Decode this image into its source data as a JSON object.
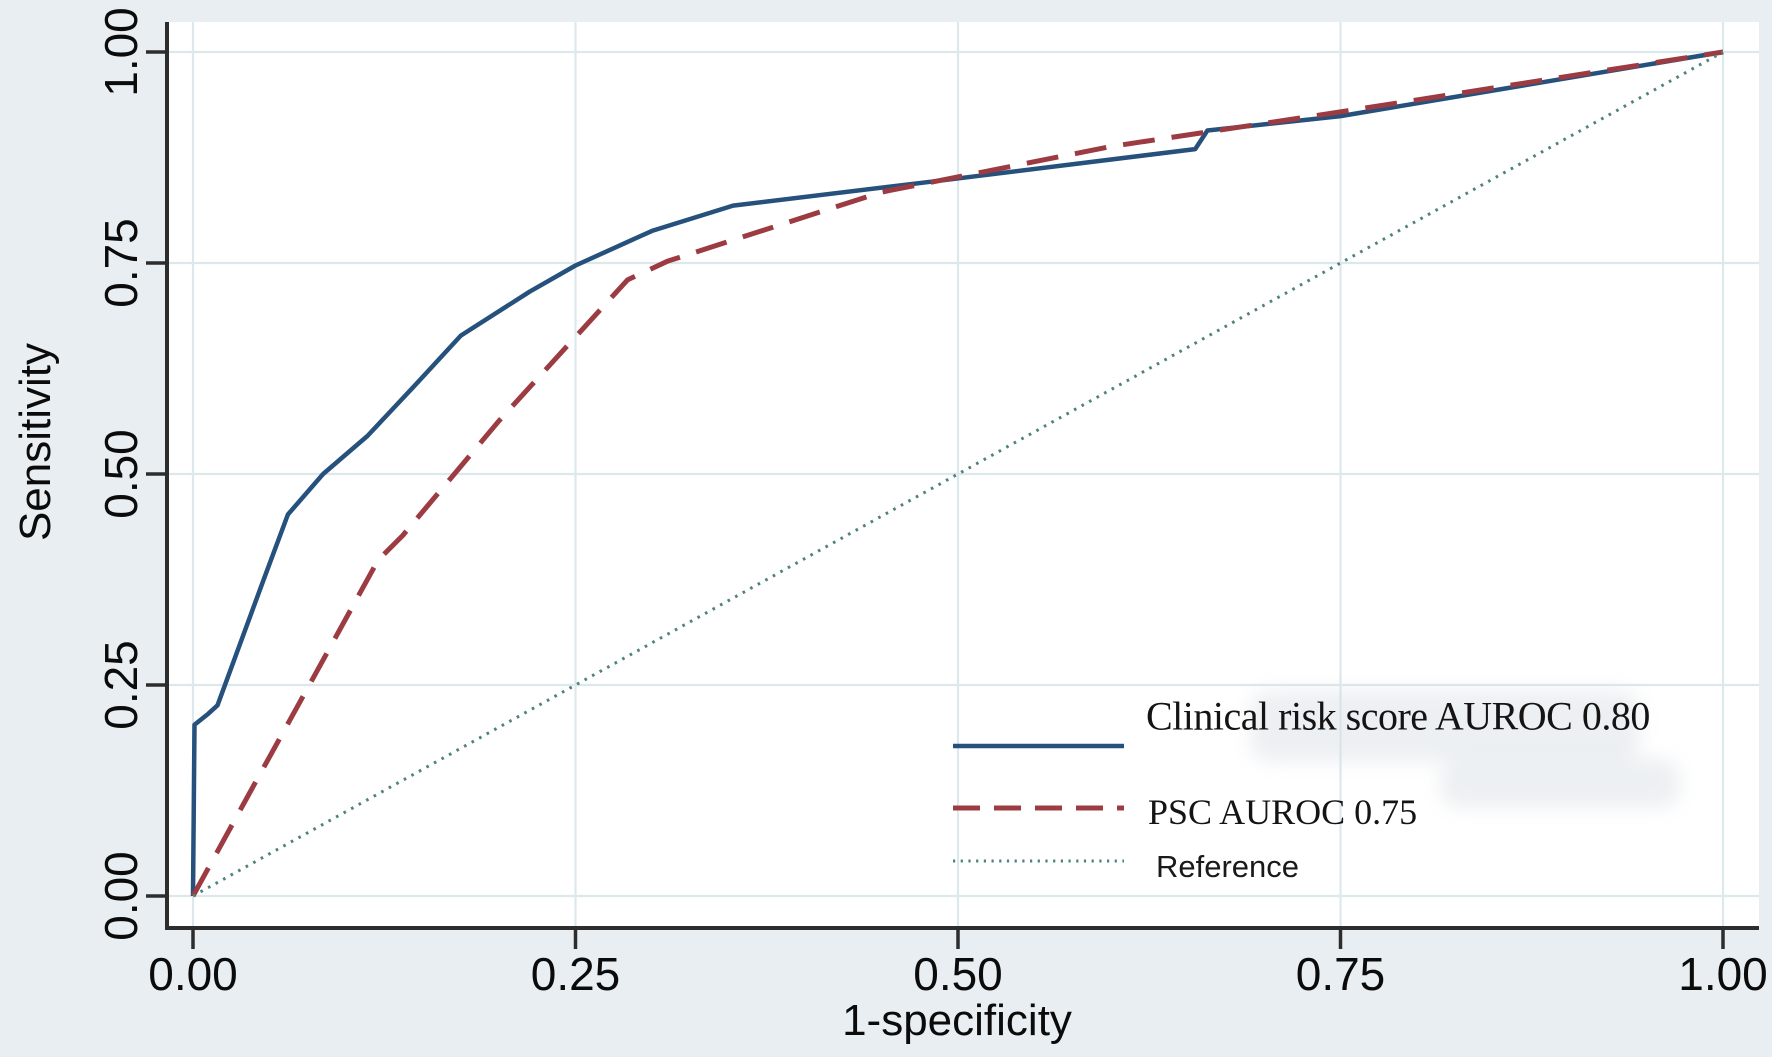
{
  "figure": {
    "kind": "ROC curve comparison plot",
    "background": "#e8eef1"
  },
  "chart_data": {
    "type": "line",
    "title": "",
    "xlabel": "1-specificity",
    "ylabel": "Sensitivity",
    "xlim": [
      0,
      1
    ],
    "ylim": [
      0,
      1
    ],
    "grid": true,
    "xticks": [
      "0.00",
      "0.25",
      "0.50",
      "0.75",
      "1.00"
    ],
    "yticks": [
      "0.00",
      "0.25",
      "0.50",
      "0.75",
      "1.00"
    ],
    "legend_position": "inside-lower-right",
    "series": [
      {
        "name": "clinical-risk-score",
        "label": "Clinical risk score AUROC 0.80",
        "auroc": 0.8,
        "style": "solid",
        "color": "#25517c",
        "points": [
          [
            0,
            0
          ],
          [
            0.001,
            0.203
          ],
          [
            0.01,
            0.216
          ],
          [
            0.016,
            0.226
          ],
          [
            0.046,
            0.374
          ],
          [
            0.062,
            0.452
          ],
          [
            0.085,
            0.5
          ],
          [
            0.114,
            0.545
          ],
          [
            0.144,
            0.603
          ],
          [
            0.175,
            0.664
          ],
          [
            0.22,
            0.716
          ],
          [
            0.25,
            0.747
          ],
          [
            0.3,
            0.788
          ],
          [
            0.353,
            0.818
          ],
          [
            0.49,
            0.848
          ],
          [
            0.655,
            0.885
          ],
          [
            0.663,
            0.907
          ],
          [
            0.75,
            0.924
          ],
          [
            1,
            1
          ]
        ]
      },
      {
        "name": "psc",
        "label": "PSC AUROC 0.75",
        "auroc": 0.75,
        "style": "dashed",
        "color": "#9c3c42",
        "points": [
          [
            0,
            0
          ],
          [
            0.04,
            0.132
          ],
          [
            0.076,
            0.25
          ],
          [
            0.121,
            0.398
          ],
          [
            0.137,
            0.427
          ],
          [
            0.2,
            0.563
          ],
          [
            0.284,
            0.73
          ],
          [
            0.31,
            0.752
          ],
          [
            0.45,
            0.834
          ],
          [
            0.6,
            0.888
          ],
          [
            0.75,
            0.929
          ],
          [
            1,
            1
          ]
        ]
      },
      {
        "name": "reference",
        "label": "Reference",
        "style": "dotted",
        "color": "#4e827e",
        "points": [
          [
            0,
            0
          ],
          [
            1,
            1
          ]
        ]
      }
    ]
  },
  "colors": {
    "outer_background": "#e8eef1",
    "plot_background": "#ffffff",
    "gridline": "#dde8ec",
    "axis_line": "#2d2d2d",
    "tick": "#2d2d2d",
    "text": "#0b0b0b"
  }
}
